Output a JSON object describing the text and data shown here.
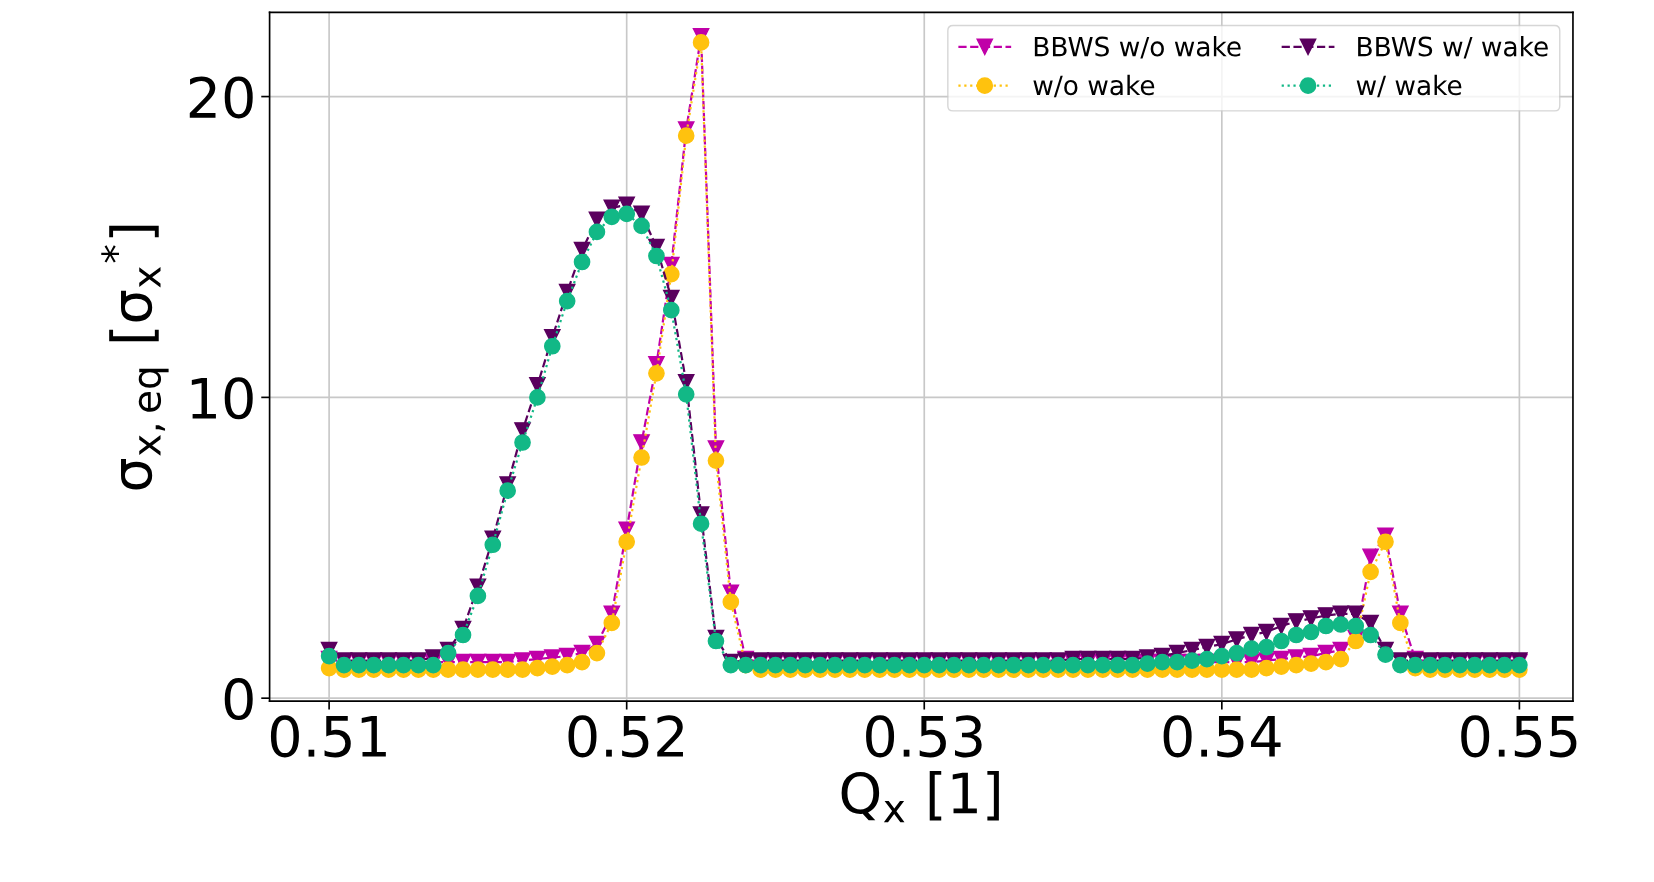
{
  "chart_data": {
    "type": "line",
    "xlabel": "Q$_{x}$ [1]",
    "ylabel": "σ$_{x,eq}$ [σ$_{x}$$^{*}$]",
    "x": [
      0.51,
      0.5105,
      0.511,
      0.5115,
      0.512,
      0.5125,
      0.513,
      0.5135,
      0.514,
      0.5145,
      0.515,
      0.5155,
      0.516,
      0.5165,
      0.517,
      0.5175,
      0.518,
      0.5185,
      0.519,
      0.5195,
      0.52,
      0.5205,
      0.521,
      0.5215,
      0.522,
      0.5225,
      0.523,
      0.5235,
      0.524,
      0.5245,
      0.525,
      0.5255,
      0.526,
      0.5265,
      0.527,
      0.5275,
      0.528,
      0.5285,
      0.529,
      0.5295,
      0.53,
      0.5305,
      0.531,
      0.5315,
      0.532,
      0.5325,
      0.533,
      0.5335,
      0.534,
      0.5345,
      0.535,
      0.5355,
      0.536,
      0.5365,
      0.537,
      0.5375,
      0.538,
      0.5385,
      0.539,
      0.5395,
      0.54,
      0.5405,
      0.541,
      0.5415,
      0.542,
      0.5425,
      0.543,
      0.5435,
      0.544,
      0.5445,
      0.545,
      0.5455,
      0.546,
      0.5465,
      0.547,
      0.5475,
      0.548,
      0.5485,
      0.549,
      0.5495,
      0.55
    ],
    "series": [
      {
        "name": "BBWS w/o wake",
        "color": "#c000a8",
        "marker": "triangle",
        "line_style": "dashed",
        "values": [
          1.3,
          1.2,
          1.2,
          1.2,
          1.2,
          1.2,
          1.2,
          1.2,
          1.2,
          1.2,
          1.2,
          1.2,
          1.2,
          1.25,
          1.3,
          1.35,
          1.4,
          1.5,
          1.8,
          2.8,
          5.6,
          8.5,
          11.1,
          14.4,
          18.9,
          22.0,
          8.3,
          3.5,
          1.3,
          1.2,
          1.2,
          1.2,
          1.2,
          1.2,
          1.2,
          1.2,
          1.2,
          1.2,
          1.2,
          1.2,
          1.2,
          1.2,
          1.2,
          1.2,
          1.2,
          1.2,
          1.2,
          1.2,
          1.2,
          1.2,
          1.2,
          1.2,
          1.2,
          1.2,
          1.2,
          1.2,
          1.2,
          1.2,
          1.2,
          1.2,
          1.2,
          1.2,
          1.2,
          1.25,
          1.3,
          1.35,
          1.4,
          1.5,
          1.6,
          2.0,
          4.7,
          5.4,
          2.8,
          1.3,
          1.2,
          1.2,
          1.2,
          1.2,
          1.2,
          1.2,
          1.2
        ]
      },
      {
        "name": "w/o wake",
        "color": "#ffc20e",
        "marker": "circle",
        "line_style": "dotted",
        "values": [
          1.0,
          0.95,
          0.95,
          0.95,
          0.95,
          0.95,
          0.95,
          0.95,
          0.95,
          0.95,
          0.95,
          0.95,
          0.95,
          0.95,
          1.0,
          1.05,
          1.1,
          1.2,
          1.5,
          2.5,
          5.2,
          8.0,
          10.8,
          14.1,
          18.7,
          21.8,
          7.9,
          3.2,
          1.1,
          0.95,
          0.95,
          0.95,
          0.95,
          0.95,
          0.95,
          0.95,
          0.95,
          0.95,
          0.95,
          0.95,
          0.95,
          0.95,
          0.95,
          0.95,
          0.95,
          0.95,
          0.95,
          0.95,
          0.95,
          0.95,
          0.95,
          0.95,
          0.95,
          0.95,
          0.95,
          0.95,
          0.95,
          0.95,
          0.95,
          0.95,
          0.95,
          0.95,
          0.95,
          1.0,
          1.05,
          1.1,
          1.15,
          1.2,
          1.3,
          1.9,
          4.2,
          5.2,
          2.5,
          1.0,
          0.95,
          0.95,
          0.95,
          0.95,
          0.95,
          0.95,
          0.95
        ]
      },
      {
        "name": "BBWS w/ wake",
        "color": "#5a005e",
        "marker": "triangle",
        "line_style": "dashed",
        "values": [
          1.6,
          1.25,
          1.25,
          1.25,
          1.25,
          1.25,
          1.25,
          1.35,
          1.6,
          2.3,
          3.7,
          5.3,
          7.1,
          8.9,
          10.4,
          12.0,
          13.5,
          14.9,
          15.9,
          16.3,
          16.4,
          16.1,
          15.0,
          13.3,
          10.5,
          6.1,
          2.0,
          1.2,
          1.25,
          1.25,
          1.25,
          1.25,
          1.25,
          1.25,
          1.25,
          1.25,
          1.25,
          1.25,
          1.25,
          1.25,
          1.25,
          1.25,
          1.25,
          1.25,
          1.25,
          1.25,
          1.25,
          1.25,
          1.25,
          1.25,
          1.3,
          1.3,
          1.3,
          1.3,
          1.3,
          1.35,
          1.4,
          1.5,
          1.6,
          1.7,
          1.8,
          1.95,
          2.1,
          2.2,
          2.4,
          2.55,
          2.65,
          2.75,
          2.8,
          2.8,
          2.5,
          1.6,
          1.25,
          1.25,
          1.25,
          1.25,
          1.25,
          1.25,
          1.25,
          1.25,
          1.25
        ]
      },
      {
        "name": "w/ wake",
        "color": "#12b886",
        "marker": "circle",
        "line_style": "dotted",
        "values": [
          1.4,
          1.1,
          1.1,
          1.1,
          1.1,
          1.1,
          1.1,
          1.1,
          1.5,
          2.1,
          3.4,
          5.1,
          6.9,
          8.5,
          10.0,
          11.7,
          13.2,
          14.5,
          15.5,
          16.0,
          16.1,
          15.7,
          14.7,
          12.9,
          10.1,
          5.8,
          1.9,
          1.1,
          1.1,
          1.1,
          1.1,
          1.1,
          1.1,
          1.1,
          1.1,
          1.1,
          1.1,
          1.1,
          1.1,
          1.1,
          1.1,
          1.1,
          1.1,
          1.1,
          1.1,
          1.1,
          1.1,
          1.1,
          1.1,
          1.1,
          1.1,
          1.1,
          1.1,
          1.1,
          1.1,
          1.15,
          1.2,
          1.2,
          1.25,
          1.3,
          1.4,
          1.5,
          1.65,
          1.7,
          1.9,
          2.1,
          2.2,
          2.4,
          2.45,
          2.4,
          2.1,
          1.45,
          1.1,
          1.1,
          1.1,
          1.1,
          1.1,
          1.1,
          1.1,
          1.1,
          1.1
        ]
      }
    ],
    "xlim": [
      0.508,
      0.5518
    ],
    "xticks": [
      0.51,
      0.52,
      0.53,
      0.54,
      0.55
    ],
    "ylim": [
      -0.1,
      22.8
    ],
    "yticks": [
      0,
      10,
      20
    ],
    "grid": true,
    "legend": "top right"
  }
}
